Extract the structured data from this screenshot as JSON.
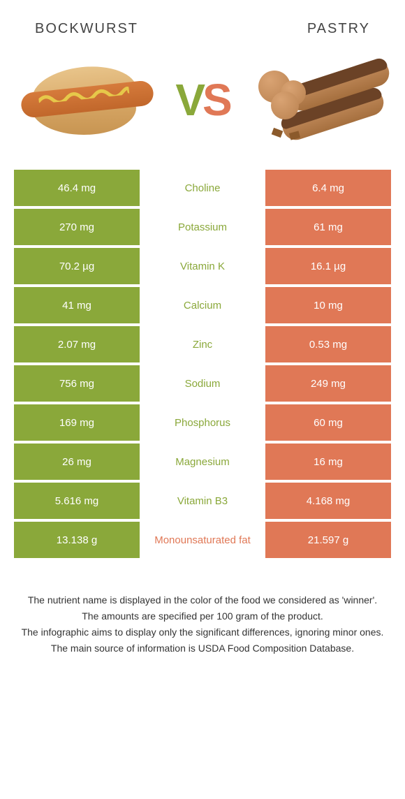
{
  "header": {
    "left_title": "BOCKWURST",
    "right_title": "PASTRY"
  },
  "vs": {
    "v_color": "#8aa83a",
    "s_color": "#e07856"
  },
  "colors": {
    "left_bg": "#8aa83a",
    "right_bg": "#e07856",
    "left_text": "#8aa83a",
    "right_text": "#e07856",
    "value_text": "#ffffff",
    "row_gap_bg": "#ffffff"
  },
  "table": {
    "rows": [
      {
        "nutrient": "Choline",
        "left": "46.4 mg",
        "right": "6.4 mg",
        "winner": "left"
      },
      {
        "nutrient": "Potassium",
        "left": "270 mg",
        "right": "61 mg",
        "winner": "left"
      },
      {
        "nutrient": "Vitamin K",
        "left": "70.2 µg",
        "right": "16.1 µg",
        "winner": "left"
      },
      {
        "nutrient": "Calcium",
        "left": "41 mg",
        "right": "10 mg",
        "winner": "left"
      },
      {
        "nutrient": "Zinc",
        "left": "2.07 mg",
        "right": "0.53 mg",
        "winner": "left"
      },
      {
        "nutrient": "Sodium",
        "left": "756 mg",
        "right": "249 mg",
        "winner": "left"
      },
      {
        "nutrient": "Phosphorus",
        "left": "169 mg",
        "right": "60 mg",
        "winner": "left"
      },
      {
        "nutrient": "Magnesium",
        "left": "26 mg",
        "right": "16 mg",
        "winner": "left"
      },
      {
        "nutrient": "Vitamin B3",
        "left": "5.616 mg",
        "right": "4.168 mg",
        "winner": "left"
      },
      {
        "nutrient": "Monounsaturated fat",
        "left": "13.138 g",
        "right": "21.597 g",
        "winner": "right"
      }
    ]
  },
  "footer": {
    "line1": "The nutrient name is displayed in the color of the food we considered as 'winner'.",
    "line2": "The amounts are specified per 100 gram of the product.",
    "line3": "The infographic aims to display only the significant differences, ignoring minor ones.",
    "line4": "The main source of information is USDA Food Composition Database."
  }
}
